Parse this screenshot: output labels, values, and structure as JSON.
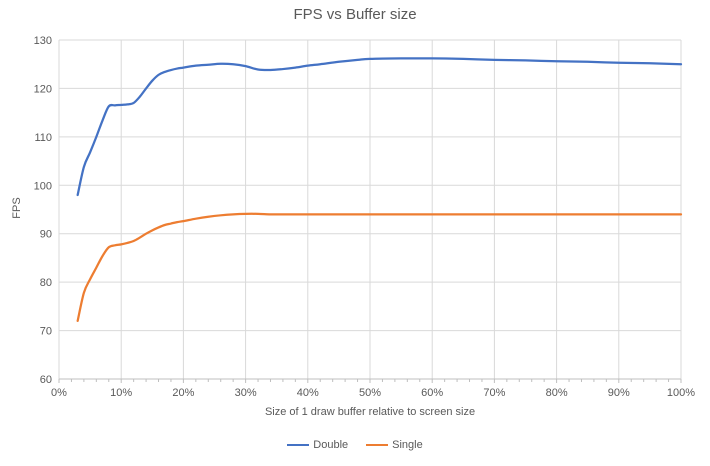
{
  "colors": {
    "series_double": "#4472C4",
    "series_single": "#ED7D31",
    "gridline": "#D9D9D9",
    "axis_line": "#BFBFBF",
    "text": "#595959",
    "background": "#FFFFFF"
  },
  "chart_data": {
    "type": "line",
    "title": "FPS vs Buffer size",
    "xlabel": "Size of 1 draw buffer relative to screen size",
    "ylabel": "FPS",
    "xlim": [
      0,
      100
    ],
    "ylim": [
      60,
      130
    ],
    "x_tick_values": [
      0,
      10,
      20,
      30,
      40,
      50,
      60,
      70,
      80,
      90,
      100
    ],
    "x_tick_labels": [
      "0%",
      "10%",
      "20%",
      "30%",
      "40%",
      "50%",
      "60%",
      "70%",
      "80%",
      "90%",
      "100%"
    ],
    "x_minor_tick_step": 2,
    "y_tick_values": [
      60,
      70,
      80,
      90,
      100,
      110,
      120,
      130
    ],
    "grid": true,
    "smooth": true,
    "legend_position": "bottom",
    "series": [
      {
        "name": "Double",
        "color": "#4472C4",
        "points": [
          [
            3,
            98
          ],
          [
            4,
            103.8
          ],
          [
            5,
            106.8
          ],
          [
            6,
            110
          ],
          [
            7,
            113.4
          ],
          [
            8,
            116.3
          ],
          [
            9,
            116.5
          ],
          [
            10,
            116.6
          ],
          [
            11,
            116.7
          ],
          [
            12,
            117
          ],
          [
            13,
            118.3
          ],
          [
            14,
            120
          ],
          [
            15,
            121.6
          ],
          [
            16,
            122.8
          ],
          [
            17,
            123.4
          ],
          [
            18,
            123.8
          ],
          [
            19,
            124.1
          ],
          [
            20,
            124.3
          ],
          [
            22,
            124.7
          ],
          [
            24,
            124.9
          ],
          [
            26,
            125.1
          ],
          [
            28,
            125
          ],
          [
            30,
            124.6
          ],
          [
            32,
            123.9
          ],
          [
            34,
            123.8
          ],
          [
            36,
            124
          ],
          [
            38,
            124.3
          ],
          [
            40,
            124.7
          ],
          [
            42,
            125
          ],
          [
            45,
            125.5
          ],
          [
            48,
            125.9
          ],
          [
            50,
            126.1
          ],
          [
            55,
            126.2
          ],
          [
            60,
            126.2
          ],
          [
            65,
            126.1
          ],
          [
            70,
            125.9
          ],
          [
            75,
            125.8
          ],
          [
            80,
            125.6
          ],
          [
            85,
            125.5
          ],
          [
            90,
            125.3
          ],
          [
            95,
            125.2
          ],
          [
            100,
            125
          ]
        ]
      },
      {
        "name": "Single",
        "color": "#ED7D31",
        "points": [
          [
            3,
            72
          ],
          [
            4,
            77.8
          ],
          [
            5,
            80.6
          ],
          [
            6,
            83
          ],
          [
            7,
            85.4
          ],
          [
            8,
            87.2
          ],
          [
            9,
            87.6
          ],
          [
            10,
            87.8
          ],
          [
            11,
            88.1
          ],
          [
            12,
            88.5
          ],
          [
            13,
            89.2
          ],
          [
            14,
            90
          ],
          [
            15,
            90.7
          ],
          [
            16,
            91.3
          ],
          [
            17,
            91.8
          ],
          [
            18,
            92.1
          ],
          [
            19,
            92.4
          ],
          [
            20,
            92.6
          ],
          [
            22,
            93.1
          ],
          [
            24,
            93.5
          ],
          [
            26,
            93.8
          ],
          [
            28,
            94
          ],
          [
            30,
            94.1
          ],
          [
            32,
            94.1
          ],
          [
            34,
            94
          ],
          [
            36,
            94
          ],
          [
            38,
            94
          ],
          [
            40,
            94
          ],
          [
            45,
            94
          ],
          [
            50,
            94
          ],
          [
            55,
            94
          ],
          [
            60,
            94
          ],
          [
            65,
            94
          ],
          [
            70,
            94
          ],
          [
            75,
            94
          ],
          [
            80,
            94
          ],
          [
            85,
            94
          ],
          [
            90,
            94
          ],
          [
            95,
            94
          ],
          [
            100,
            94
          ]
        ]
      }
    ]
  }
}
